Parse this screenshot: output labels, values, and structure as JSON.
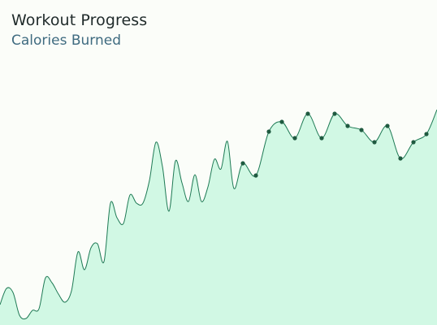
{
  "chart_data": {
    "type": "area",
    "title": "Workout Progress",
    "subtitle": "Calories Burned",
    "xlabel": "",
    "ylabel": "",
    "grid": false,
    "legend": "none",
    "ylim": [
      0,
      400
    ],
    "colors": {
      "line": "#1f7a55",
      "fill": "#d1f8e4",
      "marker": "#1f5a40",
      "background": "#fbfdf9"
    },
    "series": [
      {
        "x": [
          0,
          8,
          16,
          24,
          32,
          40,
          48,
          56,
          64,
          72,
          80,
          88,
          96,
          104,
          112,
          120,
          128,
          136,
          144,
          152,
          160,
          168,
          176,
          184,
          192,
          200,
          208,
          216,
          224,
          232,
          240,
          248,
          256,
          264,
          272,
          280,
          288,
          299,
          315,
          331,
          347,
          363,
          379,
          396,
          412,
          428,
          445,
          461,
          477,
          493,
          509,
          525,
          538
        ],
        "values": [
          25,
          45,
          40,
          12,
          8,
          18,
          20,
          58,
          52,
          38,
          28,
          42,
          90,
          68,
          95,
          100,
          78,
          150,
          132,
          125,
          160,
          150,
          150,
          178,
          225,
          195,
          140,
          202,
          175,
          152,
          185,
          152,
          170,
          204,
          192,
          226,
          168,
          199,
          184,
          238,
          250,
          230,
          260,
          230,
          260,
          245,
          240,
          225,
          245,
          205,
          225,
          235,
          265
        ],
        "markers": [
          false,
          false,
          false,
          false,
          false,
          false,
          false,
          false,
          false,
          false,
          false,
          false,
          false,
          false,
          false,
          false,
          false,
          false,
          false,
          false,
          false,
          false,
          false,
          false,
          false,
          false,
          false,
          false,
          false,
          false,
          false,
          false,
          false,
          false,
          false,
          false,
          false,
          true,
          true,
          true,
          true,
          true,
          true,
          true,
          true,
          true,
          true,
          true,
          true,
          true,
          true,
          true,
          false
        ]
      }
    ]
  }
}
